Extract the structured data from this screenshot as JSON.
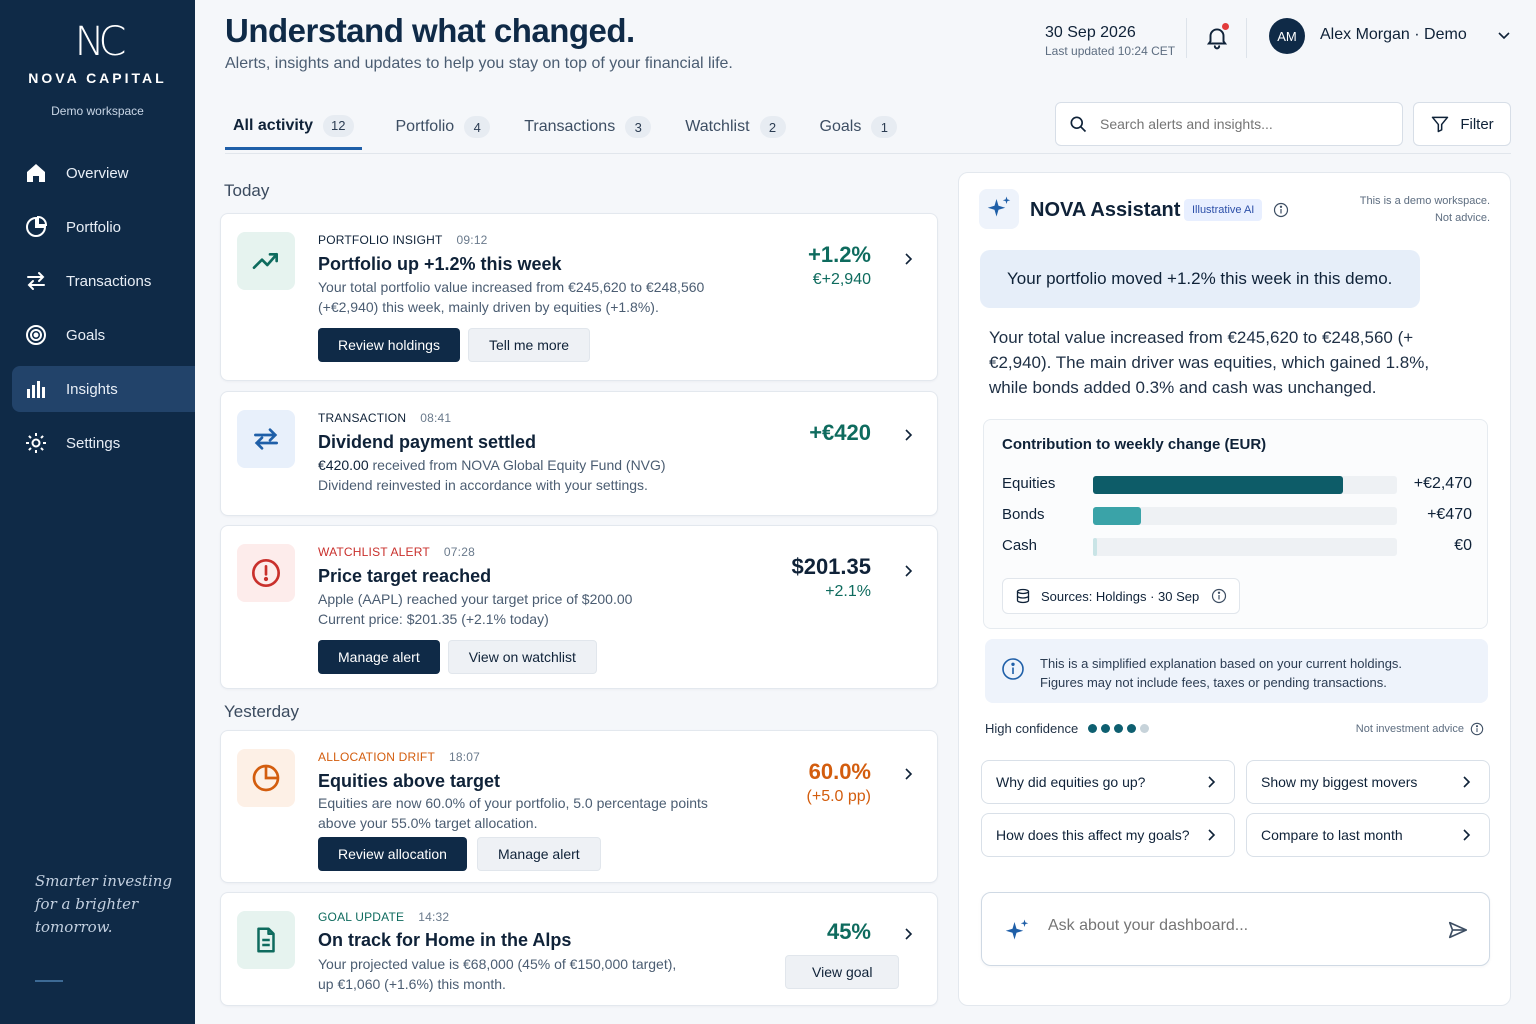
{
  "brand": {
    "mark": "NC",
    "name": "NOVA CAPITAL",
    "workspace": "Demo workspace",
    "tagline": "Smarter investing for a brighter tomorrow."
  },
  "nav": {
    "items": [
      {
        "label": "Overview",
        "icon": "home-icon"
      },
      {
        "label": "Portfolio",
        "icon": "pie-chart-icon"
      },
      {
        "label": "Transactions",
        "icon": "swap-arrows-icon"
      },
      {
        "label": "Goals",
        "icon": "target-icon"
      },
      {
        "label": "Insights",
        "icon": "bar-chart-icon",
        "active": true
      },
      {
        "label": "Settings",
        "icon": "gear-icon"
      }
    ]
  },
  "header": {
    "title": "Understand what changed.",
    "subtitle": "Alerts, insights and updates to help you stay on top of your financial life.",
    "date": "30 Sep 2026",
    "updated": "Last updated 10:24 CET",
    "user_initials": "AM",
    "user_name": "Alex Morgan · Demo"
  },
  "tabs": [
    {
      "label": "All activity",
      "count": "12",
      "active": true
    },
    {
      "label": "Portfolio",
      "count": "4"
    },
    {
      "label": "Transactions",
      "count": "3"
    },
    {
      "label": "Watchlist",
      "count": "2"
    },
    {
      "label": "Goals",
      "count": "1"
    }
  ],
  "search": {
    "placeholder": "Search alerts and insights..."
  },
  "filter_label": "Filter",
  "sections": {
    "today": "Today",
    "yesterday": "Yesterday"
  },
  "cards": [
    {
      "category": "PORTFOLIO INSIGHT",
      "time": "09:12",
      "title": "Portfolio up +1.2% this week",
      "desc1": "Your total portfolio value increased from €245,620 to €248,560",
      "desc2": "(+€2,940) this week, mainly driven by equities (+1.8%).",
      "value": "+1.2%",
      "value_sub": "€+2,940",
      "btn_primary": "Review holdings",
      "btn_secondary": "Tell me more",
      "icon": "trend-up-icon"
    },
    {
      "category": "TRANSACTION",
      "time": "08:41",
      "title": "Dividend payment settled",
      "desc_amount": "€420.00",
      "desc1": " received from NOVA Global Equity Fund (NVG)",
      "desc2": "Dividend reinvested in accordance with your settings.",
      "value": "+€420",
      "icon": "swap-arrows-icon"
    },
    {
      "category": "WATCHLIST ALERT",
      "time": "07:28",
      "title": "Price target reached",
      "desc1": "Apple (AAPL) reached your target price of $200.00",
      "desc2": "Current price: $201.35 (+2.1% today)",
      "value": "$201.35",
      "value_sub": "+2.1%",
      "btn_primary": "Manage alert",
      "btn_secondary": "View on watchlist",
      "icon": "alert-circle-icon"
    },
    {
      "category": "ALLOCATION DRIFT",
      "time": "18:07",
      "title": "Equities above target",
      "desc1": "Equities are now 60.0% of your portfolio, 5.0 percentage points",
      "desc2": "above your 55.0% target allocation.",
      "value": "60.0%",
      "value_sub": "(+5.0 pp)",
      "btn_primary": "Review allocation",
      "btn_secondary": "Manage alert",
      "icon": "pie-chart-icon"
    },
    {
      "category": "GOAL UPDATE",
      "time": "14:32",
      "title": "On track for Home in the Alps",
      "desc1": "Your projected value is €68,000 (45% of €150,000 target),",
      "desc2": "up €1,060 (+1.6%) this month.",
      "value": "45%",
      "btn_secondary": "View goal",
      "icon": "document-icon"
    }
  ],
  "assistant": {
    "title": "NOVA Assistant",
    "pill": "Illustrative AI",
    "note1": "This is a demo workspace.",
    "note2": "Not advice.",
    "question": "Your portfolio moved +1.2% this week in this demo.",
    "answer": "Your total value increased from €245,620 to €248,560 (+€2,940). The main driver was equities, which gained 1.8%, while bonds added 0.3% and cash was unchanged.",
    "sources": "Sources: Holdings · 30 Sep",
    "explain1": "This is a simplified explanation based on your current holdings.",
    "explain2": "Figures may not include fees, taxes or pending transactions.",
    "confidence": "High confidence",
    "confidence_level": 4,
    "confidence_max": 5,
    "not_advice": "Not investment advice",
    "suggestions": [
      "Why did equities go up?",
      "Show my biggest movers",
      "How does this affect my goals?",
      "Compare to last month"
    ],
    "ask_placeholder": "Ask about your dashboard..."
  },
  "chart_data": {
    "type": "bar",
    "title": "Contribution to weekly change (EUR)",
    "categories": [
      "Equities",
      "Bonds",
      "Cash"
    ],
    "values": [
      2470,
      470,
      0
    ],
    "labels": [
      "+€2,470",
      "+€470",
      "€0"
    ],
    "colors": [
      "#0d5c68",
      "#3aa3a8",
      "#c9e4e6"
    ],
    "xlim": [
      0,
      3000
    ]
  }
}
